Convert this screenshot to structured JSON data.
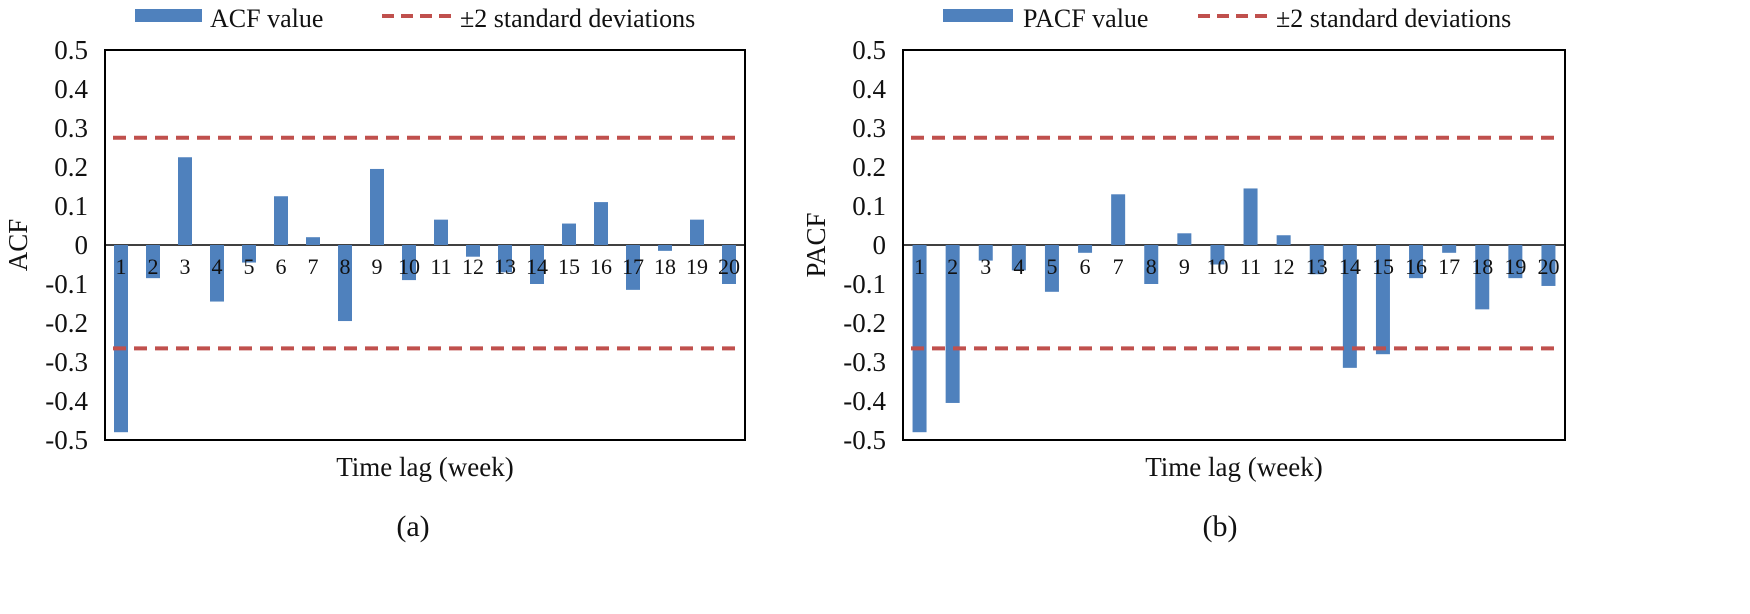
{
  "colors": {
    "bar": "#4f81bd",
    "band": "#c0504d",
    "axis": "#000000"
  },
  "chart_data": [
    {
      "type": "bar",
      "panel_label": "(a)",
      "legend": {
        "bar": "ACF value",
        "band": "±2 standard deviations",
        "placement": "top"
      },
      "ylabel": "ACF",
      "xlabel": "Time lag (week)",
      "ylim": [
        -0.5,
        0.5
      ],
      "yticks": [
        "0.5",
        "0.4",
        "0.3",
        "0.2",
        "0.1",
        "0",
        "-0.1",
        "-0.2",
        "-0.3",
        "-0.4",
        "-0.5"
      ],
      "categories": [
        "1",
        "2",
        "3",
        "4",
        "5",
        "6",
        "7",
        "8",
        "9",
        "10",
        "11",
        "12",
        "13",
        "14",
        "15",
        "16",
        "17",
        "18",
        "19",
        "20"
      ],
      "values": [
        -0.48,
        -0.085,
        0.225,
        -0.145,
        -0.045,
        0.125,
        0.02,
        -0.195,
        0.195,
        -0.09,
        0.065,
        -0.03,
        -0.07,
        -0.1,
        0.055,
        0.11,
        -0.115,
        -0.015,
        0.065,
        -0.1
      ],
      "band": [
        0.275,
        -0.265
      ]
    },
    {
      "type": "bar",
      "panel_label": "(b)",
      "legend": {
        "bar": "PACF value",
        "band": "±2 standard deviations",
        "placement": "top"
      },
      "ylabel": "PACF",
      "xlabel": "Time lag (week)",
      "ylim": [
        -0.5,
        0.5
      ],
      "yticks": [
        "0.5",
        "0.4",
        "0.3",
        "0.2",
        "0.1",
        "0",
        "-0.1",
        "-0.2",
        "-0.3",
        "-0.4",
        "-0.5"
      ],
      "categories": [
        "1",
        "2",
        "3",
        "4",
        "5",
        "6",
        "7",
        "8",
        "9",
        "10",
        "11",
        "12",
        "13",
        "14",
        "15",
        "16",
        "17",
        "18",
        "19",
        "20"
      ],
      "values": [
        -0.48,
        -0.405,
        -0.04,
        -0.065,
        -0.12,
        -0.02,
        0.13,
        -0.1,
        0.03,
        -0.05,
        0.145,
        0.025,
        -0.075,
        -0.315,
        -0.28,
        -0.085,
        -0.02,
        -0.165,
        -0.085,
        -0.105
      ],
      "band": [
        0.275,
        -0.265
      ]
    }
  ]
}
